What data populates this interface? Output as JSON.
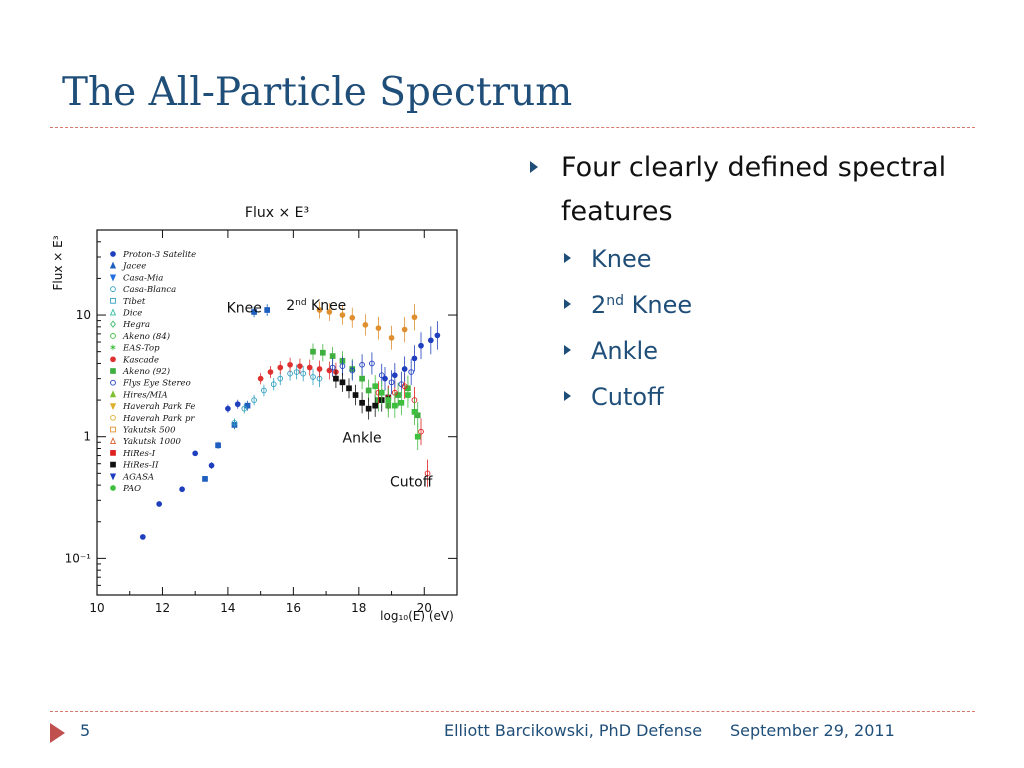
{
  "slide": {
    "title": "The All-Particle Spectrum",
    "bullet_main": "Four clearly defined spectral features",
    "sub_bullets": [
      {
        "text": "Knee"
      },
      {
        "pre": "2",
        "sup": "nd",
        "post": " Knee"
      },
      {
        "text": "Ankle"
      },
      {
        "text": "Cutoff"
      }
    ]
  },
  "footer": {
    "slide_number": "5",
    "author": "Elliott Barcikowski, PhD Defense",
    "date": "September 29, 2011"
  },
  "colors": {
    "title": "#1f4e79",
    "accent": "#c0504d",
    "rule": "#d47a6f"
  },
  "chart_data": {
    "type": "scatter",
    "title": "Flux × E³",
    "ylabel": "Flux × E³",
    "xlabel": "log₁₀(E) (eV)",
    "xlim": [
      10,
      21
    ],
    "ylim": [
      0.05,
      50
    ],
    "y_scale": "log",
    "x_ticks": [
      10,
      12,
      14,
      16,
      18,
      20
    ],
    "y_ticks": [
      {
        "value": 10,
        "label": "10"
      },
      {
        "value": 1,
        "label": "1"
      },
      {
        "value": 0.1,
        "label": "10⁻¹"
      }
    ],
    "annotations": [
      {
        "text": "Knee",
        "x": 14.5,
        "y": 10.5
      },
      {
        "pre": "2",
        "sup": "nd",
        "post": " Knee",
        "x": 16.7,
        "y": 11
      },
      {
        "text": "Ankle",
        "x": 18.1,
        "y": 0.9
      },
      {
        "text": "Cutoff",
        "x": 19.6,
        "y": 0.39
      }
    ],
    "legend": [
      {
        "name": "Proton-3 Satelite",
        "color": "#1f3fbf",
        "marker": "circle"
      },
      {
        "name": "Jacee",
        "color": "#1f5fbf",
        "marker": "triangle"
      },
      {
        "name": "Casa-Mia",
        "color": "#1f6fdf",
        "marker": "triangle-down"
      },
      {
        "name": "Casa-Blanca",
        "color": "#2fa0c0",
        "marker": "circle-open"
      },
      {
        "name": "Tibet",
        "color": "#2fa0c0",
        "marker": "square-open"
      },
      {
        "name": "Dice",
        "color": "#2fbf9f",
        "marker": "triangle-open"
      },
      {
        "name": "Hegra",
        "color": "#3fbf6f",
        "marker": "diamond-open"
      },
      {
        "name": "Akeno (84)",
        "color": "#3fbf3f",
        "marker": "circle-open"
      },
      {
        "name": "EAS-Top",
        "color": "#3fbf3f",
        "marker": "star"
      },
      {
        "name": "Kascade",
        "color": "#df3030",
        "marker": "circle"
      },
      {
        "name": "Akeno (92)",
        "color": "#3faf3f",
        "marker": "square"
      },
      {
        "name": "Flys Eye Stereo",
        "color": "#1f3fbf",
        "marker": "circle-open"
      },
      {
        "name": "Hires/MIA",
        "color": "#7fbf2f",
        "marker": "triangle"
      },
      {
        "name": "Haverah Park Fe",
        "color": "#dfaf2f",
        "marker": "triangle-down"
      },
      {
        "name": "Haverah Park pr",
        "color": "#dfaf2f",
        "marker": "circle-open"
      },
      {
        "name": "Yakutsk 500",
        "color": "#df8f2f",
        "marker": "square-open"
      },
      {
        "name": "Yakutsk 1000",
        "color": "#df5f2f",
        "marker": "triangle-open"
      },
      {
        "name": "HiRes-I",
        "color": "#df2020",
        "marker": "square"
      },
      {
        "name": "HiRes-II",
        "color": "#111111",
        "marker": "square"
      },
      {
        "name": "AGASA",
        "color": "#1f3fbf",
        "marker": "triangle-down"
      },
      {
        "name": "PAO",
        "color": "#3fbf3f",
        "marker": "circle"
      }
    ],
    "series": [
      {
        "name": "Proton-3 Satelite",
        "color": "#1f3fbf",
        "points": [
          [
            11.4,
            0.15
          ],
          [
            11.9,
            0.28
          ],
          [
            12.6,
            0.37
          ],
          [
            13.0,
            0.73
          ],
          [
            13.5,
            0.58
          ],
          [
            14.3,
            1.85
          ],
          [
            14.0,
            1.7
          ]
        ]
      },
      {
        "name": "Jacee",
        "color": "#1f5fbf",
        "points": [
          [
            13.3,
            0.45
          ],
          [
            13.7,
            0.85
          ],
          [
            14.2,
            1.25
          ],
          [
            14.6,
            1.8
          ],
          [
            14.8,
            10.6
          ],
          [
            15.2,
            11.0
          ]
        ]
      },
      {
        "name": "Tibet / Casa",
        "color": "#2fa0c0",
        "points": [
          [
            14.2,
            1.3
          ],
          [
            14.5,
            1.7
          ],
          [
            14.8,
            2.0
          ],
          [
            15.1,
            2.4
          ],
          [
            15.4,
            2.7
          ],
          [
            15.6,
            3.0
          ],
          [
            15.9,
            3.3
          ],
          [
            16.1,
            3.4
          ],
          [
            16.3,
            3.3
          ],
          [
            16.6,
            3.1
          ],
          [
            16.8,
            3.0
          ]
        ]
      },
      {
        "name": "Kascade",
        "color": "#df3030",
        "points": [
          [
            15.0,
            3.0
          ],
          [
            15.3,
            3.4
          ],
          [
            15.6,
            3.7
          ],
          [
            15.9,
            3.9
          ],
          [
            16.2,
            3.8
          ],
          [
            16.5,
            3.7
          ],
          [
            16.8,
            3.6
          ],
          [
            17.1,
            3.5
          ],
          [
            17.3,
            3.4
          ]
        ]
      },
      {
        "name": "Akeno (92)",
        "color": "#3faf3f",
        "points": [
          [
            16.6,
            5.0
          ],
          [
            16.9,
            4.9
          ],
          [
            17.2,
            4.6
          ],
          [
            17.5,
            4.2
          ],
          [
            17.8,
            3.6
          ],
          [
            18.1,
            3.0
          ],
          [
            18.3,
            2.4
          ],
          [
            18.6,
            2.0
          ],
          [
            18.9,
            1.8
          ],
          [
            19.2,
            2.2
          ],
          [
            19.5,
            2.5
          ],
          [
            19.8,
            1.5
          ]
        ]
      },
      {
        "name": "Flys Eye Stereo",
        "color": "#1f3fbf",
        "points": [
          [
            17.2,
            3.7
          ],
          [
            17.5,
            3.8
          ],
          [
            17.8,
            3.5
          ],
          [
            18.1,
            3.9
          ],
          [
            18.4,
            4.0
          ],
          [
            18.7,
            3.2
          ],
          [
            19.0,
            2.8
          ],
          [
            19.3,
            2.7
          ],
          [
            19.6,
            3.4
          ]
        ]
      },
      {
        "name": "Yakutsk",
        "color": "#df8f2f",
        "points": [
          [
            16.8,
            11.0
          ],
          [
            17.1,
            10.6
          ],
          [
            17.5,
            10.0
          ],
          [
            17.8,
            9.5
          ],
          [
            18.2,
            8.3
          ],
          [
            18.6,
            7.8
          ],
          [
            19.0,
            6.5
          ],
          [
            19.4,
            7.6
          ],
          [
            19.7,
            9.6
          ]
        ]
      },
      {
        "name": "HiRes-II",
        "color": "#111111",
        "points": [
          [
            17.3,
            3.0
          ],
          [
            17.5,
            2.8
          ],
          [
            17.7,
            2.5
          ],
          [
            17.9,
            2.2
          ],
          [
            18.1,
            1.9
          ],
          [
            18.3,
            1.7
          ],
          [
            18.5,
            1.8
          ],
          [
            18.7,
            2.0
          ],
          [
            18.9,
            2.1
          ]
        ]
      },
      {
        "name": "HiRes-I",
        "color": "#df2020",
        "points": [
          [
            18.6,
            2.3
          ],
          [
            18.9,
            2.1
          ],
          [
            19.1,
            2.3
          ],
          [
            19.4,
            2.6
          ],
          [
            19.7,
            2.0
          ],
          [
            19.9,
            1.1
          ],
          [
            20.1,
            0.5
          ]
        ]
      },
      {
        "name": "AGASA",
        "color": "#1f3fbf",
        "points": [
          [
            18.8,
            3.0
          ],
          [
            19.1,
            3.2
          ],
          [
            19.4,
            3.6
          ],
          [
            19.7,
            4.4
          ],
          [
            19.9,
            5.6
          ],
          [
            20.2,
            6.2
          ],
          [
            20.4,
            6.8
          ]
        ]
      },
      {
        "name": "PAO",
        "color": "#3fbf3f",
        "points": [
          [
            18.5,
            2.6
          ],
          [
            18.7,
            2.3
          ],
          [
            18.9,
            2.0
          ],
          [
            19.1,
            1.8
          ],
          [
            19.3,
            1.9
          ],
          [
            19.5,
            2.2
          ],
          [
            19.7,
            1.6
          ],
          [
            19.8,
            1.0
          ]
        ]
      }
    ]
  }
}
